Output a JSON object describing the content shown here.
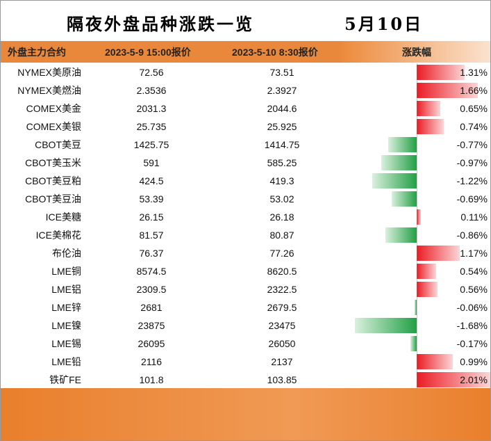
{
  "header": {
    "title": "隔夜外盘品种涨跌一览",
    "date": "5月10日"
  },
  "table": {
    "columns": [
      "外盘主力合约",
      "2023-5-9 15:00报价",
      "2023-5-10 8:30报价",
      "涨跌幅"
    ],
    "rows": [
      {
        "name": "NYMEX美原油",
        "prev": "72.56",
        "curr": "73.51",
        "change": {
          "value": 1.31,
          "label": "1.31%"
        }
      },
      {
        "name": "NYMEX美燃油",
        "prev": "2.3536",
        "curr": "2.3927",
        "change": {
          "value": 1.66,
          "label": "1.66%"
        }
      },
      {
        "name": "COMEX美金",
        "prev": "2031.3",
        "curr": "2044.6",
        "change": {
          "value": 0.65,
          "label": "0.65%"
        }
      },
      {
        "name": "COMEX美银",
        "prev": "25.735",
        "curr": "25.925",
        "change": {
          "value": 0.74,
          "label": "0.74%"
        }
      },
      {
        "name": "CBOT美豆",
        "prev": "1425.75",
        "curr": "1414.75",
        "change": {
          "value": -0.77,
          "label": "-0.77%"
        }
      },
      {
        "name": "CBOT美玉米",
        "prev": "591",
        "curr": "585.25",
        "change": {
          "value": -0.97,
          "label": "-0.97%"
        }
      },
      {
        "name": "CBOT美豆粕",
        "prev": "424.5",
        "curr": "419.3",
        "change": {
          "value": -1.22,
          "label": "-1.22%"
        }
      },
      {
        "name": "CBOT美豆油",
        "prev": "53.39",
        "curr": "53.02",
        "change": {
          "value": -0.69,
          "label": "-0.69%"
        }
      },
      {
        "name": "ICE美糖",
        "prev": "26.15",
        "curr": "26.18",
        "change": {
          "value": 0.11,
          "label": "0.11%"
        }
      },
      {
        "name": "ICE美棉花",
        "prev": "81.57",
        "curr": "80.87",
        "change": {
          "value": -0.86,
          "label": "-0.86%"
        }
      },
      {
        "name": "布伦油",
        "prev": "76.37",
        "curr": "77.26",
        "change": {
          "value": 1.17,
          "label": "1.17%"
        }
      },
      {
        "name": "LME铜",
        "prev": "8574.5",
        "curr": "8620.5",
        "change": {
          "value": 0.54,
          "label": "0.54%"
        }
      },
      {
        "name": "LME铝",
        "prev": "2309.5",
        "curr": "2322.5",
        "change": {
          "value": 0.56,
          "label": "0.56%"
        }
      },
      {
        "name": "LME锌",
        "prev": "2681",
        "curr": "2679.5",
        "change": {
          "value": -0.06,
          "label": "-0.06%"
        }
      },
      {
        "name": "LME镍",
        "prev": "23875",
        "curr": "23475",
        "change": {
          "value": -1.68,
          "label": "-1.68%"
        }
      },
      {
        "name": "LME锡",
        "prev": "26095",
        "curr": "26050",
        "change": {
          "value": -0.17,
          "label": "-0.17%"
        }
      },
      {
        "name": "LME铅",
        "prev": "2116",
        "curr": "2137",
        "change": {
          "value": 0.99,
          "label": "0.99%"
        }
      },
      {
        "name": "铁矿FE",
        "prev": "101.8",
        "curr": "103.85",
        "change": {
          "value": 2.01,
          "label": "2.01%"
        }
      }
    ]
  }
}
